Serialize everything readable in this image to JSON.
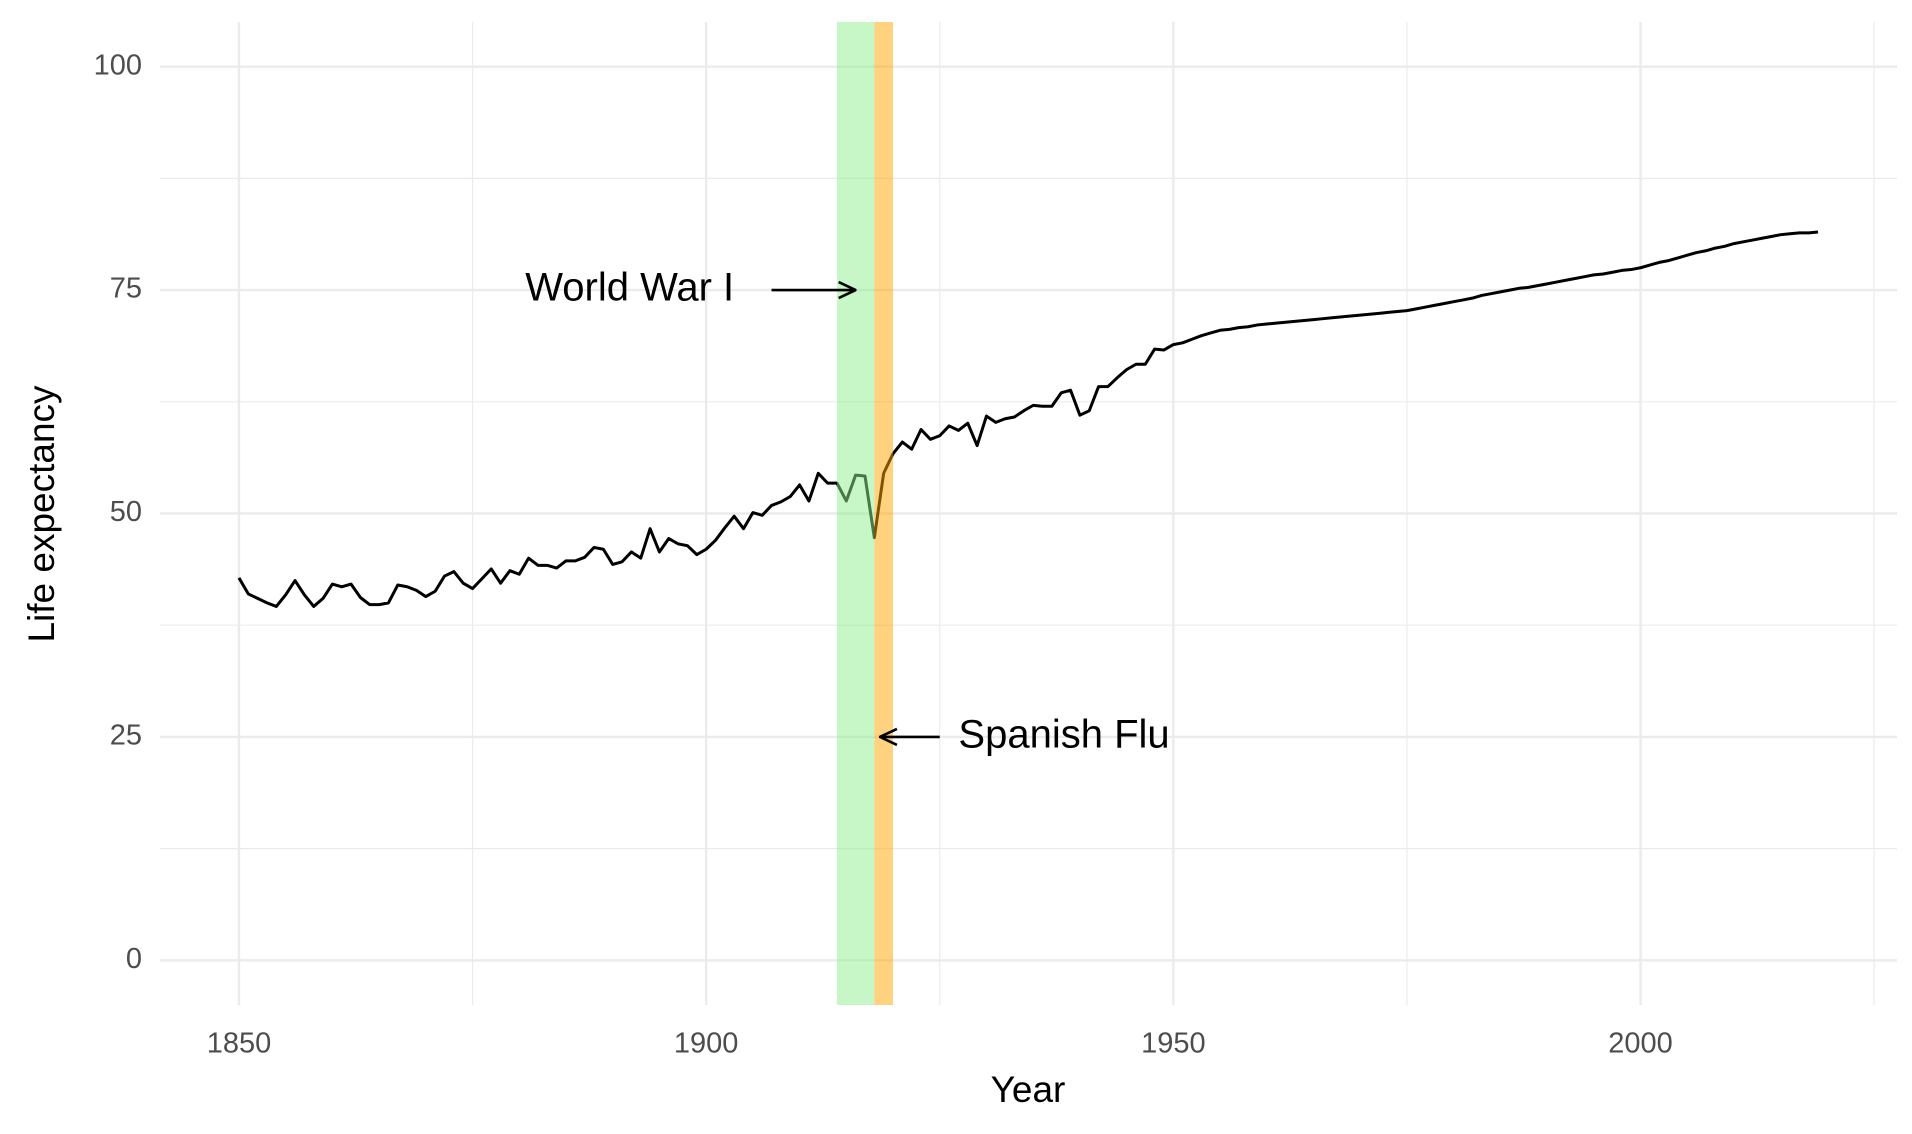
{
  "chart_data": {
    "type": "line",
    "x_label": "Year",
    "y_label": "Life expectancy",
    "x": [
      1850,
      1851,
      1852,
      1853,
      1854,
      1855,
      1856,
      1857,
      1858,
      1859,
      1860,
      1861,
      1862,
      1863,
      1864,
      1865,
      1866,
      1867,
      1868,
      1869,
      1870,
      1871,
      1872,
      1873,
      1874,
      1875,
      1876,
      1877,
      1878,
      1879,
      1880,
      1881,
      1882,
      1883,
      1884,
      1885,
      1886,
      1887,
      1888,
      1889,
      1890,
      1891,
      1892,
      1893,
      1894,
      1895,
      1896,
      1897,
      1898,
      1899,
      1900,
      1901,
      1902,
      1903,
      1904,
      1905,
      1906,
      1907,
      1908,
      1909,
      1910,
      1911,
      1912,
      1913,
      1914,
      1915,
      1916,
      1917,
      1918,
      1919,
      1920,
      1921,
      1922,
      1923,
      1924,
      1925,
      1926,
      1927,
      1928,
      1929,
      1930,
      1931,
      1932,
      1933,
      1934,
      1935,
      1936,
      1937,
      1938,
      1939,
      1940,
      1941,
      1942,
      1943,
      1944,
      1945,
      1946,
      1947,
      1948,
      1949,
      1950,
      1951,
      1952,
      1953,
      1954,
      1955,
      1956,
      1957,
      1958,
      1959,
      1960,
      1961,
      1962,
      1963,
      1964,
      1965,
      1966,
      1967,
      1968,
      1969,
      1970,
      1971,
      1972,
      1973,
      1974,
      1975,
      1976,
      1977,
      1978,
      1979,
      1980,
      1981,
      1982,
      1983,
      1984,
      1985,
      1986,
      1987,
      1988,
      1989,
      1990,
      1991,
      1992,
      1993,
      1994,
      1995,
      1996,
      1997,
      1998,
      1999,
      2000,
      2001,
      2002,
      2003,
      2004,
      2005,
      2006,
      2007,
      2008,
      2009,
      2010,
      2011,
      2012,
      2013,
      2014,
      2015,
      2016,
      2017,
      2018,
      2019
    ],
    "values": [
      42.8,
      41,
      40.5,
      40,
      39.6,
      40.9,
      42.5,
      40.9,
      39.6,
      40.5,
      42.1,
      41.8,
      42.1,
      40.6,
      39.8,
      39.8,
      40,
      42,
      41.8,
      41.4,
      40.7,
      41.3,
      43,
      43.5,
      42.2,
      41.6,
      42.7,
      43.8,
      42.2,
      43.6,
      43.2,
      45,
      44.2,
      44.2,
      43.9,
      44.7,
      44.7,
      45.1,
      46.2,
      46,
      44.3,
      44.6,
      45.7,
      45,
      48.3,
      45.7,
      47.2,
      46.6,
      46.4,
      45.4,
      46,
      47,
      48.4,
      49.7,
      48.3,
      50.1,
      49.8,
      50.9,
      51.3,
      51.9,
      53.2,
      51.4,
      54.5,
      53.4,
      53.4,
      51.4,
      54.3,
      54.2,
      47.3,
      54.5,
      56.7,
      58,
      57.2,
      59.4,
      58.3,
      58.7,
      59.8,
      59.3,
      60.1,
      57.6,
      60.9,
      60.2,
      60.6,
      60.8,
      61.5,
      62.1,
      62,
      62,
      63.5,
      63.8,
      61,
      61.5,
      64.2,
      64.2,
      65.2,
      66.1,
      66.7,
      66.7,
      68.4,
      68.3,
      68.9,
      69.1,
      69.5,
      69.9,
      70.2,
      70.5,
      70.6,
      70.8,
      70.9,
      71.1,
      71.2,
      71.3,
      71.4,
      71.5,
      71.6,
      71.7,
      71.8,
      71.9,
      72.0,
      72.1,
      72.2,
      72.3,
      72.4,
      72.5,
      72.6,
      72.7,
      72.9,
      73.1,
      73.3,
      73.5,
      73.7,
      73.9,
      74.1,
      74.4,
      74.6,
      74.8,
      75.0,
      75.2,
      75.3,
      75.5,
      75.7,
      75.9,
      76.1,
      76.3,
      76.5,
      76.7,
      76.8,
      77.0,
      77.2,
      77.3,
      77.5,
      77.8,
      78.1,
      78.3,
      78.6,
      78.9,
      79.2,
      79.4,
      79.7,
      79.9,
      80.2,
      80.4,
      80.6,
      80.8,
      81.0,
      81.2,
      81.3,
      81.4,
      81.4,
      81.5
    ],
    "color": "#000000",
    "xlim": [
      1841.55,
      2027.45
    ],
    "ylim": [
      -5,
      105
    ],
    "xticks": [
      1850,
      1900,
      1950,
      2000
    ],
    "yticks": [
      0,
      25,
      50,
      75,
      100
    ],
    "xminor": [
      1875,
      1925,
      1975,
      2025
    ],
    "yminor": [
      12.5,
      37.5,
      62.5,
      87.5
    ],
    "grid": true,
    "regions": [
      {
        "xmin": 1914,
        "xmax": 1918,
        "color": "#90ee90"
      },
      {
        "xmin": 1918,
        "xmax": 1920,
        "color": "#ffa500"
      }
    ],
    "annotations": [
      {
        "text": "World War I",
        "x": 1903,
        "y": 75,
        "anchor": "end",
        "arrow": [
          1907,
          75,
          1916,
          75
        ]
      },
      {
        "text": "Spanish Flu",
        "x": 1927,
        "y": 25,
        "anchor": "start",
        "arrow": [
          1925,
          25,
          1918.6,
          25
        ]
      }
    ]
  }
}
